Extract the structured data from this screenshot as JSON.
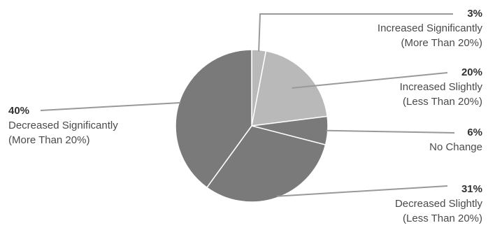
{
  "chart_data": {
    "type": "pie",
    "title": "",
    "slices": [
      {
        "name": "Increased Significantly (More Than 20%)",
        "value": 3,
        "label_pct": "3%",
        "label_lines": [
          "Increased Significantly",
          "(More Than 20%)"
        ],
        "color": "#b9b9b9"
      },
      {
        "name": "Increased Slightly (Less Than 20%)",
        "value": 20,
        "label_pct": "20%",
        "label_lines": [
          "Increased Slightly",
          "(Less Than 20%)"
        ],
        "color": "#b9b9b9"
      },
      {
        "name": "No Change",
        "value": 6,
        "label_pct": "6%",
        "label_lines": [
          "No Change"
        ],
        "color": "#7a7a7a"
      },
      {
        "name": "Decreased Slightly (Less Than 20%)",
        "value": 31,
        "label_pct": "31%",
        "label_lines": [
          "Decreased Slightly",
          "(Less Than 20%)"
        ],
        "color": "#7a7a7a"
      },
      {
        "name": "Decreased Significantly (More Than 20%)",
        "value": 40,
        "label_pct": "40%",
        "label_lines": [
          "Decreased Significantly",
          "(More Than 20%)"
        ],
        "color": "#7a7a7a"
      }
    ]
  }
}
